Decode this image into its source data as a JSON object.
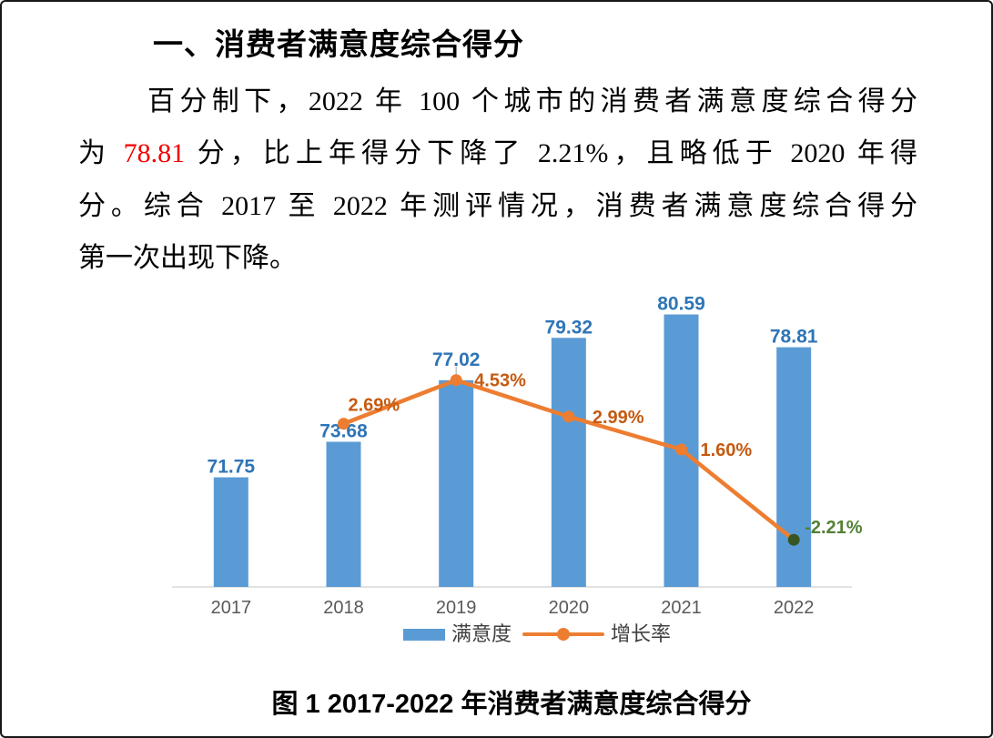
{
  "document": {
    "heading": "一、消费者满意度综合得分",
    "paragraph": {
      "line1": "百分制下，2022 年 100 个城市的消费者满意度综合得分",
      "line2_before": "为 ",
      "line2_highlight": "78.81",
      "line2_after": " 分，比上年得分下降了 2.21%，且略低于 2020 年得",
      "line3": "分。综合 2017 至 2022 年测评情况，消费者满意度综合得分",
      "line4": "第一次出现下降。"
    },
    "figure_caption": "图 1  2017-2022 年消费者满意度综合得分"
  },
  "colors": {
    "highlight_red": "#f20000",
    "bar_fill": "#5B9BD5",
    "bar_label": "#2E75B6",
    "line_stroke": "#ED7D31",
    "line_label": "#C55A11",
    "negative_label": "#538135",
    "negative_marker": "#375623",
    "axis_line": "#D9D9D9",
    "axis_tick_label": "#595959",
    "legend_text": "#3F3F3F"
  },
  "chart_data": {
    "type": "bar+line",
    "categories": [
      "2017",
      "2018",
      "2019",
      "2020",
      "2021",
      "2022"
    ],
    "series": [
      {
        "name": "满意度",
        "type": "bar",
        "axis": "left",
        "values": [
          71.75,
          73.68,
          77.02,
          79.32,
          80.59,
          78.81
        ],
        "data_labels": [
          "71.75",
          "73.68",
          "77.02",
          "79.32",
          "80.59",
          "78.81"
        ]
      },
      {
        "name": "增长率",
        "type": "line",
        "axis": "right",
        "values": [
          null,
          2.69,
          4.53,
          2.99,
          1.6,
          -2.21
        ],
        "data_labels": [
          null,
          "2.69%",
          "4.53%",
          "2.99%",
          "1.60%",
          "-2.21%"
        ]
      }
    ],
    "title": "",
    "xlabel": "",
    "ylabel": "",
    "ylim_left": [
      65.8,
      82
    ],
    "ylim_right": [
      -4.2,
      8.4
    ],
    "grid": false,
    "legend_position": "bottom",
    "legend_entries": [
      "满意度",
      "增长率"
    ]
  }
}
